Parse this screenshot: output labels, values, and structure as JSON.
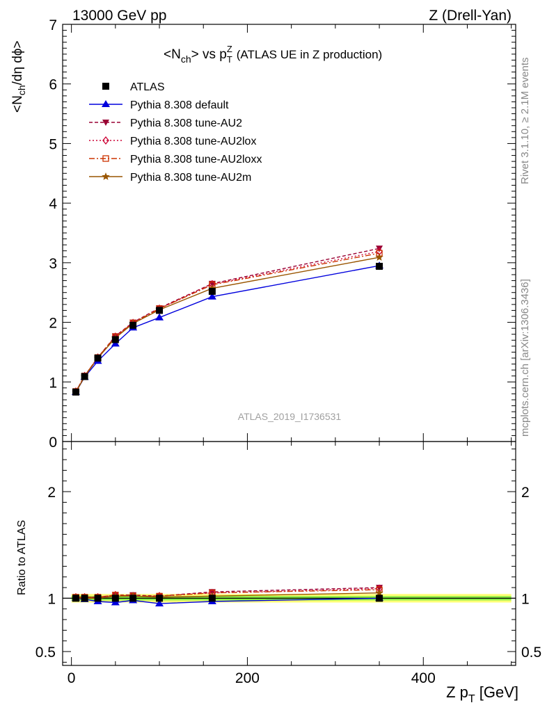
{
  "header": {
    "left": "13000 GeV pp",
    "right": "Z (Drell-Yan)"
  },
  "side_text": {
    "rivet": "Rivet 3.1.10, ≥ 2.1M events",
    "mcplots": "mcplots.cern.ch [arXiv:1306.3436]"
  },
  "watermark": "ATLAS_2019_I1736531",
  "colors": {
    "atlas": "#000000",
    "default": "#0000dd",
    "au2": "#990033",
    "au2lox": "#cc0033",
    "au2loxx": "#cc3300",
    "au2m": "#995500",
    "band_inner": "#88ee44",
    "band_outer": "#ffff77"
  },
  "chart_data": [
    {
      "type": "line",
      "panel": "main",
      "title_parts": {
        "lhs": "<N",
        "lhs_sub": "ch",
        "mid": "> vs p",
        "p_sup": "Z",
        "p_sub": "T",
        "note": "(ATLAS UE in Z production)"
      },
      "ylabel_parts": [
        "<N",
        "ch",
        "/dη dϕ>"
      ],
      "xlim": [
        -10,
        505
      ],
      "ylim": [
        0,
        7
      ],
      "yticks": [
        0,
        1,
        2,
        3,
        4,
        5,
        6,
        7
      ],
      "legend_position": "top-left",
      "x": [
        5,
        15,
        30,
        50,
        70,
        100,
        160,
        350
      ],
      "series": [
        {
          "key": "atlas",
          "name": "ATLAS",
          "marker": "square",
          "values": [
            0.83,
            1.09,
            1.4,
            1.71,
            1.95,
            2.2,
            2.52,
            2.94
          ],
          "errors": [
            0.02,
            0.02,
            0.03,
            0.03,
            0.03,
            0.04,
            0.05,
            0.06
          ]
        },
        {
          "key": "default",
          "name": "Pythia 8.308 default",
          "marker": "triangle-up",
          "dash": "",
          "values": [
            0.83,
            1.08,
            1.35,
            1.64,
            1.91,
            2.08,
            2.43,
            2.95
          ]
        },
        {
          "key": "au2",
          "name": "Pythia 8.308 tune-AU2",
          "marker": "triangle-down",
          "dash": "5,3",
          "values": [
            0.84,
            1.1,
            1.41,
            1.77,
            2.0,
            2.24,
            2.65,
            3.24
          ]
        },
        {
          "key": "au2lox",
          "name": "Pythia 8.308 tune-AU2lox",
          "marker": "diamond-open",
          "dash": "2,3",
          "values": [
            0.84,
            1.1,
            1.41,
            1.76,
            1.99,
            2.23,
            2.64,
            3.19
          ]
        },
        {
          "key": "au2loxx",
          "name": "Pythia 8.308 tune-AU2loxx",
          "marker": "square-open",
          "dash": "8,3,2,3",
          "values": [
            0.84,
            1.1,
            1.41,
            1.76,
            1.99,
            2.23,
            2.63,
            3.16
          ]
        },
        {
          "key": "au2m",
          "name": "Pythia 8.308 tune-AU2m",
          "marker": "star",
          "dash": "",
          "values": [
            0.83,
            1.09,
            1.4,
            1.74,
            1.98,
            2.21,
            2.57,
            3.09
          ]
        }
      ]
    },
    {
      "type": "line",
      "panel": "ratio",
      "ylabel": "Ratio to ATLAS",
      "xlabel_parts": {
        "main": "Z p",
        "sub": "T",
        "unit": " [GeV]"
      },
      "xlim": [
        -10,
        505
      ],
      "ylim": [
        0.37,
        2.47
      ],
      "yticks": [
        0.5,
        1,
        2
      ],
      "ytick_labels": [
        "0.5",
        "1",
        "2"
      ],
      "xticks": [
        0,
        200,
        400
      ],
      "xtick_labels": [
        "0",
        "200",
        "400"
      ],
      "x": [
        5,
        15,
        30,
        50,
        70,
        100,
        160,
        350
      ],
      "band": {
        "inner_half_width": 0.02,
        "outer_half_width": 0.04
      },
      "series": [
        {
          "key": "atlas",
          "marker": "square",
          "values": [
            1.0,
            1.0,
            1.0,
            1.0,
            1.0,
            1.0,
            1.0,
            1.0
          ]
        },
        {
          "key": "default",
          "marker": "triangle-up",
          "dash": "",
          "values": [
            1.0,
            0.99,
            0.97,
            0.96,
            0.98,
            0.95,
            0.97,
            1.0
          ]
        },
        {
          "key": "au2",
          "marker": "triangle-down",
          "dash": "5,3",
          "values": [
            1.01,
            1.01,
            1.01,
            1.03,
            1.03,
            1.02,
            1.06,
            1.1
          ]
        },
        {
          "key": "au2lox",
          "marker": "diamond-open",
          "dash": "2,3",
          "values": [
            1.01,
            1.01,
            1.01,
            1.03,
            1.02,
            1.02,
            1.05,
            1.09
          ]
        },
        {
          "key": "au2loxx",
          "marker": "square-open",
          "dash": "8,3,2,3",
          "values": [
            1.01,
            1.01,
            1.01,
            1.03,
            1.02,
            1.02,
            1.05,
            1.08
          ]
        },
        {
          "key": "au2m",
          "marker": "star",
          "dash": "",
          "values": [
            1.0,
            1.0,
            1.0,
            1.02,
            1.02,
            1.01,
            1.02,
            1.05
          ]
        }
      ]
    }
  ]
}
